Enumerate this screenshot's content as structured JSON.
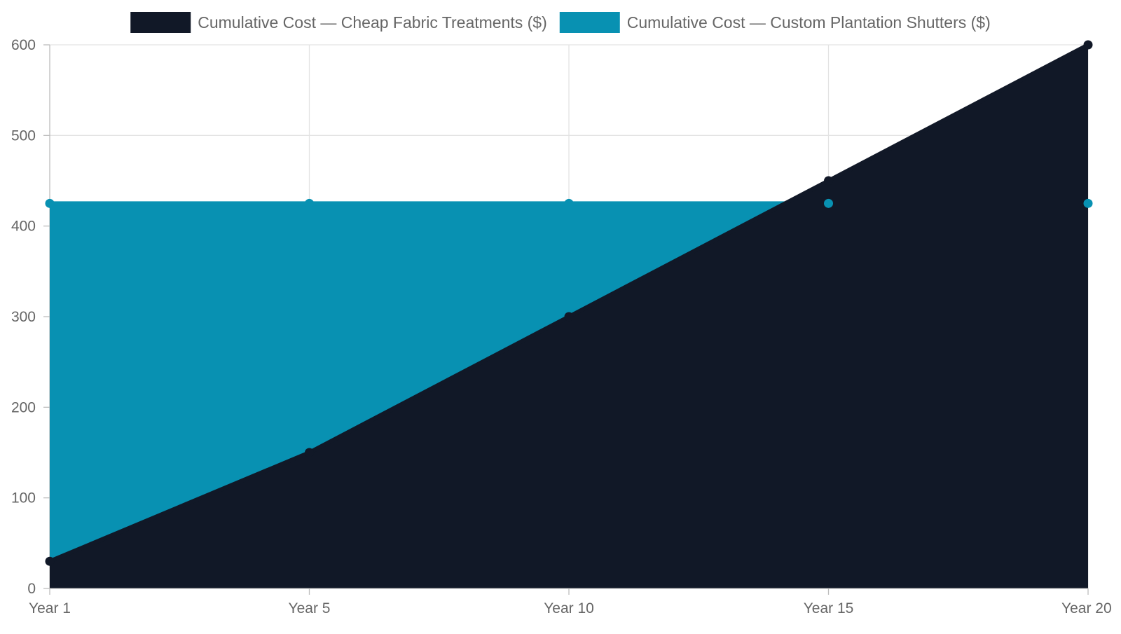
{
  "chart_data": {
    "type": "area",
    "categories": [
      "Year 1",
      "Year 5",
      "Year 10",
      "Year 15",
      "Year 20"
    ],
    "series": [
      {
        "name": "Cumulative Cost — Cheap Fabric Treatments ($)",
        "values": [
          30,
          150,
          300,
          450,
          600
        ],
        "color": "#111827"
      },
      {
        "name": "Cumulative Cost — Custom Plantation Shutters ($)",
        "values": [
          425,
          425,
          425,
          425,
          425
        ],
        "color": "#0891b2"
      }
    ],
    "ylim": [
      0,
      600
    ],
    "yticks": [
      0,
      100,
      200,
      300,
      400,
      500,
      600
    ],
    "grid": true,
    "legend_position": "top"
  }
}
